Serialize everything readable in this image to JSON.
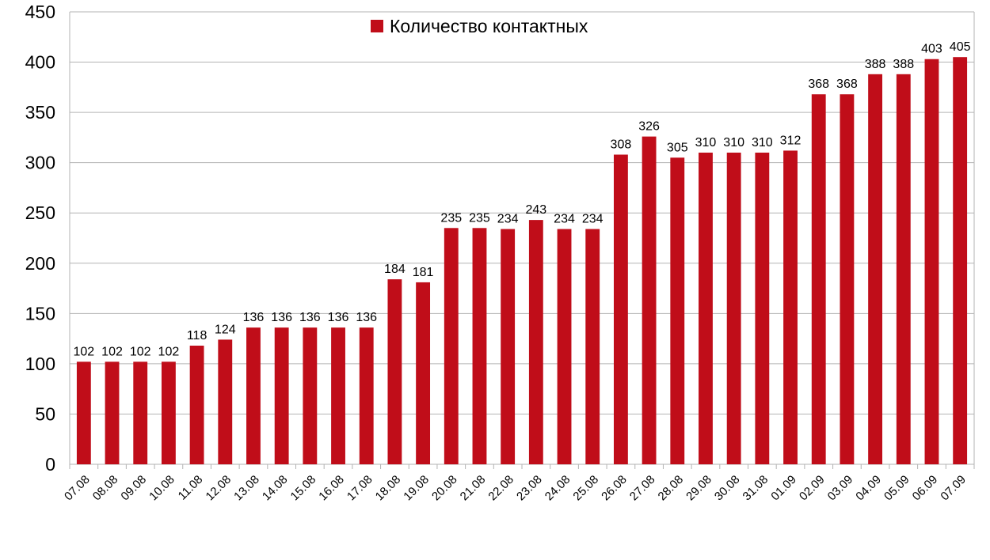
{
  "chart_data": {
    "type": "bar",
    "categories": [
      "07.08",
      "08.08",
      "09.08",
      "10.08",
      "11.08",
      "12.08",
      "13.08",
      "14.08",
      "15.08",
      "16.08",
      "17.08",
      "18.08",
      "19.08",
      "20.08",
      "21.08",
      "22.08",
      "23.08",
      "24.08",
      "25.08",
      "26.08",
      "27.08",
      "28.08",
      "29.08",
      "30.08",
      "31.08",
      "01.09",
      "02.09",
      "03.09",
      "04.09",
      "05.09",
      "06.09",
      "07.09"
    ],
    "series": [
      {
        "name": "Количество контактных",
        "color": "#c00d19",
        "values": [
          102,
          102,
          102,
          102,
          118,
          124,
          136,
          136,
          136,
          136,
          136,
          184,
          181,
          235,
          235,
          234,
          243,
          234,
          234,
          308,
          326,
          305,
          310,
          310,
          310,
          312,
          368,
          368,
          388,
          388,
          403,
          405
        ]
      }
    ],
    "title": "",
    "xlabel": "",
    "ylabel": "",
    "ylim": [
      0,
      450
    ],
    "yticks": [
      "0",
      "50",
      "100",
      "150",
      "200",
      "250",
      "300",
      "350",
      "400",
      "450"
    ],
    "grid": true,
    "legend": "top-center",
    "data_labels": true
  }
}
